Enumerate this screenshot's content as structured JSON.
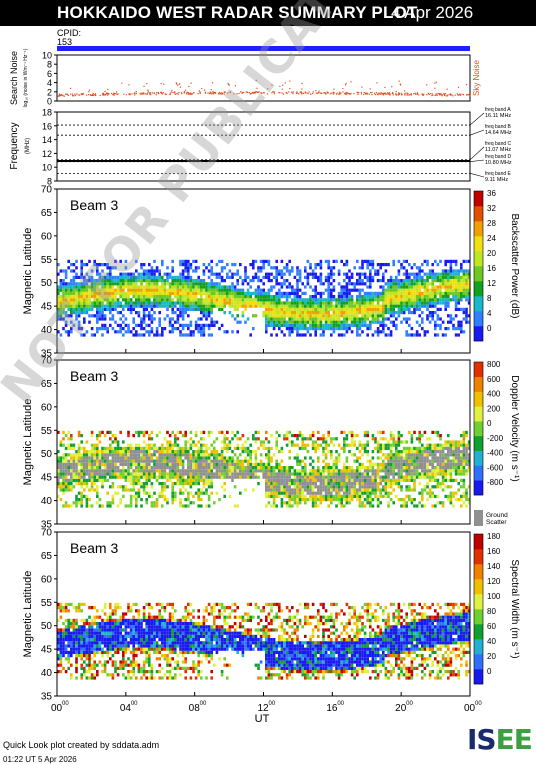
{
  "header": {
    "title": "HOKKAIDO WEST RADAR SUMMARY PLOT",
    "date": "4 Apr 2026"
  },
  "cpid": {
    "label": "CPID:",
    "value": "153"
  },
  "footer": {
    "credit": "Quick Look plot created by sddata.adm",
    "timestamp": "01:22 UT  5 Apr 2026"
  },
  "watermark": "NOT FOR PUBLICATION",
  "logo": {
    "text": "ISEE"
  },
  "chart_data": [
    {
      "type": "scatter",
      "panel": "noise",
      "ylabel": "Search Noise",
      "ylabel_sub": "log₁₀ (noise in Wm⁻¹ Hz⁻¹)",
      "right_label": "Sky Noise",
      "ylim": [
        0,
        10
      ],
      "yticks": [
        "0",
        "2",
        "4",
        "6",
        "8",
        "10"
      ],
      "series": [
        {
          "name": "Sky Noise",
          "color": "#e05020"
        }
      ]
    },
    {
      "type": "line",
      "panel": "frequency",
      "ylabel": "Frequency",
      "yunit": "(MHz)",
      "ylim": [
        8,
        18
      ],
      "yticks": [
        "8",
        "10",
        "12",
        "14",
        "16",
        "18"
      ],
      "freq_bands": [
        {
          "label": "freq band A",
          "value": "16.11 MHz",
          "mhz": 16.11
        },
        {
          "label": "freq band B",
          "value": "14.64 MHz",
          "mhz": 14.64
        },
        {
          "label": "freq band C",
          "value": "11.07 MHz",
          "mhz": 11.07
        },
        {
          "label": "freq band D",
          "value": "10.80 MHz",
          "mhz": 10.8
        },
        {
          "label": "freq band E",
          "value": "9.11 MHz",
          "mhz": 9.11
        }
      ]
    },
    {
      "type": "heatmap",
      "panel": "power",
      "beam_label": "Beam  3",
      "ylabel": "Magnetic Latitude",
      "ylim": [
        35,
        70
      ],
      "yticks": [
        "35",
        "40",
        "45",
        "50",
        "55",
        "60",
        "65",
        "70"
      ],
      "colorbar": {
        "label": "Backscatter Power (dB)",
        "ticks": [
          "0",
          "4",
          "8",
          "12",
          "16",
          "20",
          "24",
          "28",
          "32",
          "36"
        ]
      }
    },
    {
      "type": "heatmap",
      "panel": "velocity",
      "beam_label": "Beam  3",
      "ylabel": "Magnetic Latitude",
      "ylim": [
        35,
        70
      ],
      "yticks": [
        "35",
        "40",
        "45",
        "50",
        "55",
        "60",
        "65",
        "70"
      ],
      "colorbar": {
        "label": "Doppler Velocity (m s⁻¹)",
        "ticks": [
          "-800",
          "-600",
          "-400",
          "-200",
          "0",
          "200",
          "400",
          "600",
          "800"
        ]
      },
      "ground_scatter_label": [
        "Ground",
        "Scatter"
      ]
    },
    {
      "type": "heatmap",
      "panel": "width",
      "beam_label": "Beam  3",
      "ylabel": "Magnetic Latitude",
      "ylim": [
        35,
        70
      ],
      "yticks": [
        "35",
        "40",
        "45",
        "50",
        "55",
        "60",
        "65",
        "70"
      ],
      "colorbar": {
        "label": "Spectral Width (m s⁻¹)",
        "ticks": [
          "0",
          "20",
          "40",
          "60",
          "80",
          "100",
          "120",
          "140",
          "160",
          "180"
        ]
      }
    }
  ],
  "xaxis": {
    "label": "UT",
    "ticks": [
      "00",
      "04",
      "08",
      "12",
      "16",
      "20",
      "00"
    ],
    "tick_sup": "00",
    "range_hours": [
      0,
      24
    ]
  }
}
